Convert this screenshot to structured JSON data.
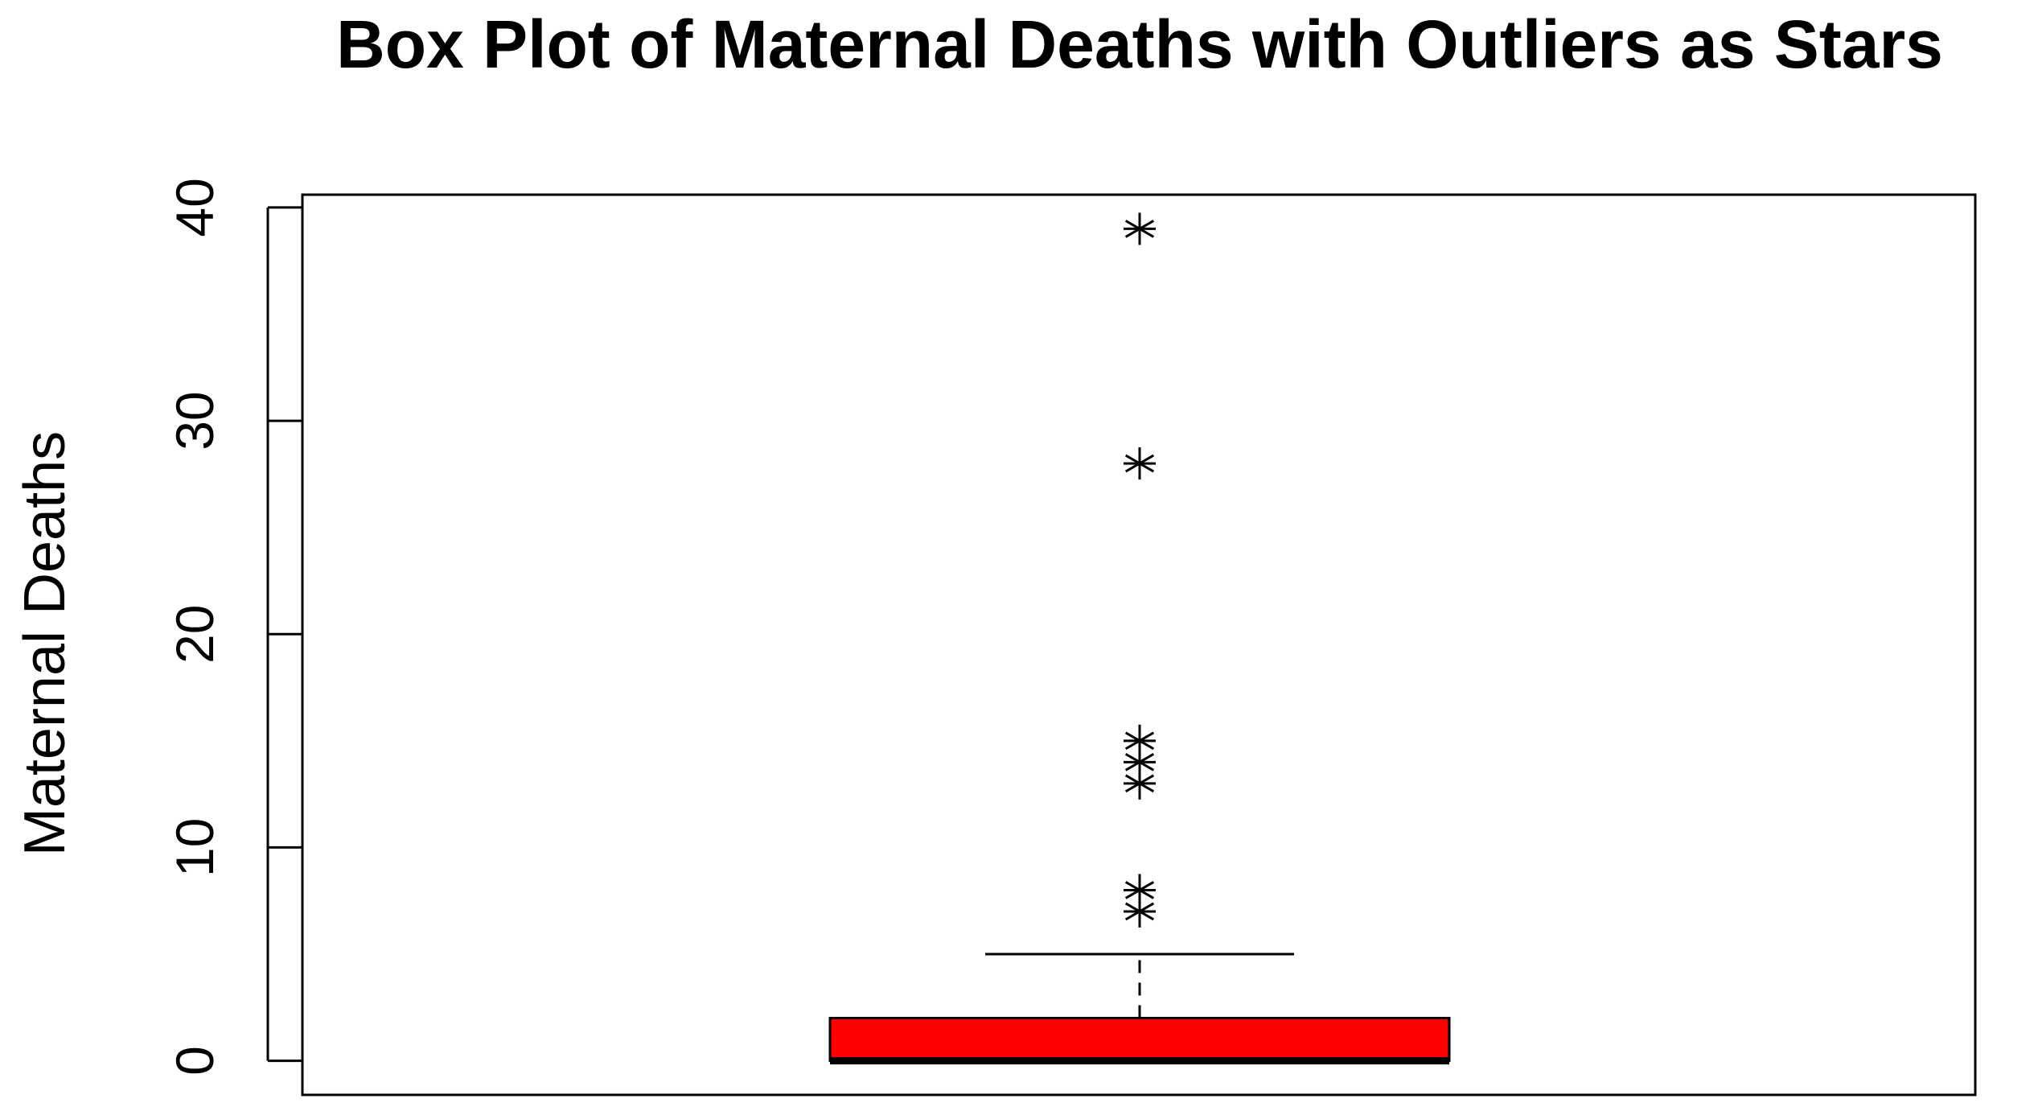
{
  "chart_data": {
    "type": "box",
    "title": "Box Plot of Maternal Deaths with Outliers as Stars",
    "xlabel": "",
    "ylabel": "Maternal Deaths",
    "ylim": [
      -1.6,
      40.6
    ],
    "yticks": [
      0,
      10,
      20,
      30,
      40
    ],
    "yticklabels": [
      "0",
      "10",
      "20",
      "30",
      "40"
    ],
    "grid": false,
    "legend": "none",
    "box": {
      "min": 0,
      "q1": 0,
      "median": 0,
      "q3": 2,
      "whisker_low": 0,
      "whisker_high": 5,
      "fill_color": "#ff0000"
    },
    "outliers": [
      7,
      8,
      13,
      14,
      15,
      28,
      39
    ],
    "outlier_marker": "star"
  }
}
